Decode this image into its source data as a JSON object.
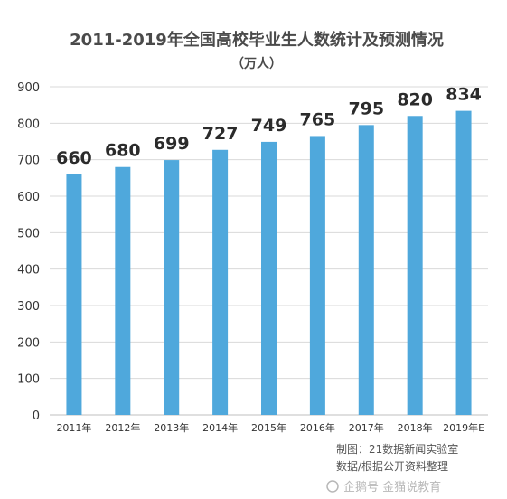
{
  "chart_data": {
    "type": "bar",
    "title": "2011-2019年全国高校毕业生人数统计及预测情况",
    "subtitle": "（万人）",
    "categories": [
      "2011年",
      "2012年",
      "2013年",
      "2014年",
      "2015年",
      "2016年",
      "2017年",
      "2018年",
      "2019年E"
    ],
    "values": [
      660,
      680,
      699,
      727,
      749,
      765,
      795,
      820,
      834
    ],
    "ylim": [
      0,
      900
    ],
    "yticks": [
      0,
      100,
      200,
      300,
      400,
      500,
      600,
      700,
      800,
      900
    ],
    "grid": true,
    "bar_color": "#4fa8dc",
    "grid_color": "#d9d9d9",
    "credits": [
      "制图：21数据新闻实验室",
      "数据/根据公开资料整理"
    ],
    "watermark": "企鹅号 金猫说教育"
  }
}
